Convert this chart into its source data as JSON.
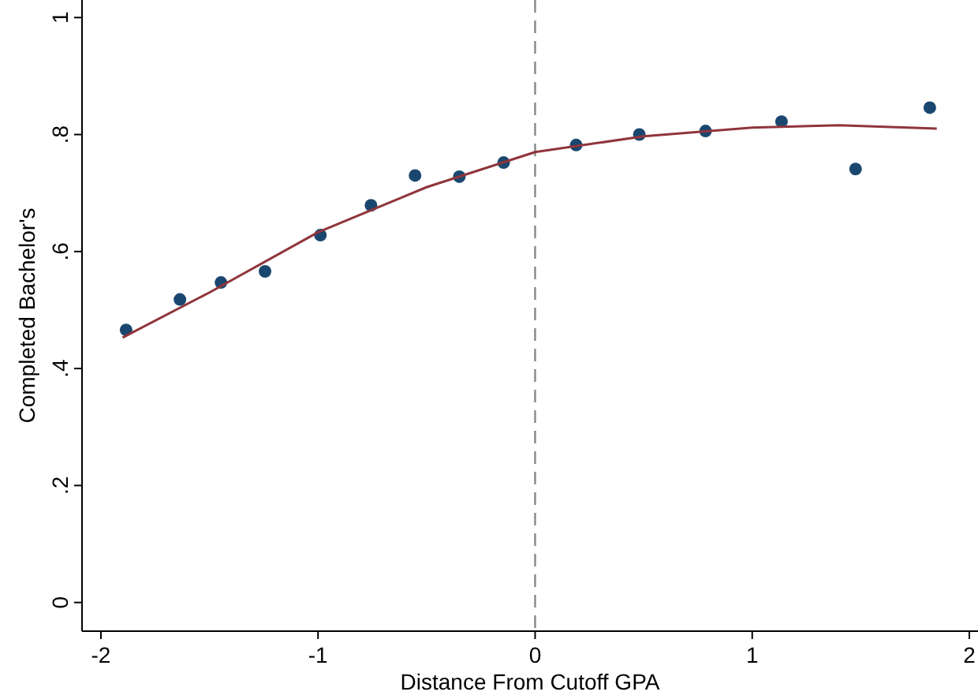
{
  "chart_data": {
    "type": "scatter",
    "xlabel": "Distance From Cutoff GPA",
    "ylabel": "Completed Bachelor's",
    "xlim": [
      -2.087,
      2.04
    ],
    "ylim": [
      -0.049,
      1.03
    ],
    "xticks": [
      -2,
      -1,
      0,
      1,
      2
    ],
    "yticks": [
      0,
      {
        "value": 0.2,
        "label": ".2"
      },
      {
        "value": 0.4,
        "label": ".4"
      },
      {
        "value": 0.6,
        "label": ".6"
      },
      {
        "value": 0.8,
        "label": ".8"
      },
      1
    ],
    "grid": false,
    "series": [
      {
        "color": "#1a476f",
        "marker": "circle",
        "x": [
          -1.884,
          -1.636,
          -1.447,
          -1.244,
          -0.989,
          -0.756,
          -0.553,
          -0.349,
          -0.145,
          0.189,
          0.48,
          0.785,
          1.135,
          1.476,
          1.818
        ],
        "values": [
          0.466,
          0.518,
          0.547,
          0.566,
          0.628,
          0.679,
          0.73,
          0.728,
          0.752,
          0.782,
          0.8,
          0.806,
          0.822,
          0.741,
          0.846
        ]
      },
      {
        "type": "line",
        "color": "#90353b",
        "marker": "none",
        "line_style": "solid",
        "x": [
          -1.9,
          -1.5,
          -1,
          -0.5,
          0,
          0.5,
          1,
          1.4,
          1.85
        ],
        "values": [
          0.453,
          0.53,
          0.633,
          0.71,
          0.77,
          0.797,
          0.812,
          0.816,
          0.81
        ]
      }
    ],
    "ref_lines": [
      {
        "axis": "x",
        "value": 0,
        "color": "#888888",
        "line_style": "dashed"
      }
    ]
  }
}
